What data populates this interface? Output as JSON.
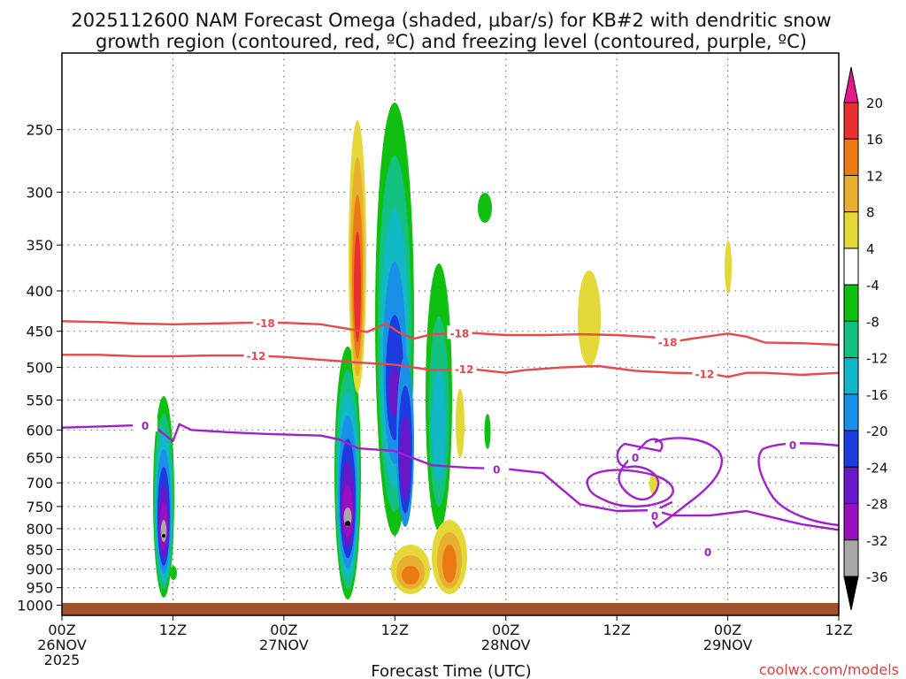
{
  "chart_data": {
    "type": "heatmap",
    "title_lines": [
      "2025112600 NAM Forecast Omega (shaded, µbar/s) for KB#2 with dendritic snow",
      "growth region (contoured, red, ºC) and freezing level (contoured, purple, ºC)"
    ],
    "xlabel": "Forecast Time (UTC)",
    "credit": "coolwx.com/models",
    "y_axis": {
      "scale": "log-pressure",
      "reversed": true,
      "ylim": [
        1030,
        200
      ],
      "ticks": [
        250,
        300,
        350,
        400,
        450,
        500,
        550,
        600,
        650,
        700,
        750,
        800,
        850,
        900,
        950,
        1000
      ]
    },
    "x_axis": {
      "unit": "forecast hour",
      "xlim": [
        0,
        84
      ],
      "ticks": [
        {
          "hour": 0,
          "lines": [
            "00Z",
            "26NOV",
            "2025"
          ]
        },
        {
          "hour": 12,
          "lines": [
            "12Z"
          ]
        },
        {
          "hour": 24,
          "lines": [
            "00Z",
            "27NOV"
          ]
        },
        {
          "hour": 36,
          "lines": [
            "12Z"
          ]
        },
        {
          "hour": 48,
          "lines": [
            "00Z",
            "28NOV"
          ]
        },
        {
          "hour": 60,
          "lines": [
            "12Z"
          ]
        },
        {
          "hour": 72,
          "lines": [
            "00Z",
            "29NOV"
          ]
        },
        {
          "hour": 84,
          "lines": [
            "12Z"
          ]
        }
      ]
    },
    "colorbar": {
      "labels": [
        "20",
        "16",
        "12",
        "8",
        "4",
        "-4",
        "-8",
        "-12",
        "-16",
        "-20",
        "-24",
        "-28",
        "-32",
        "-36"
      ],
      "colors": [
        "#e8188a",
        "#e83030",
        "#ec7a14",
        "#e8b030",
        "#e4d838",
        "#ffffff",
        "#10c010",
        "#12c080",
        "#10b8c8",
        "#1a90e8",
        "#1c3ce0",
        "#6818c8",
        "#9a10c0",
        "#a8a8a8",
        "#000000"
      ]
    },
    "series": [
      {
        "name": "-18",
        "color": "#e84848",
        "points": [
          [
            0,
            437
          ],
          [
            4,
            438
          ],
          [
            8,
            440
          ],
          [
            12,
            441
          ],
          [
            16,
            440
          ],
          [
            20,
            439
          ],
          [
            24,
            439
          ],
          [
            28,
            441
          ],
          [
            31,
            447
          ],
          [
            33,
            451
          ],
          [
            35,
            440
          ],
          [
            36.5,
            452
          ],
          [
            38,
            460
          ],
          [
            40,
            454
          ],
          [
            44,
            452
          ],
          [
            48,
            455
          ],
          [
            52,
            455
          ],
          [
            56,
            454
          ],
          [
            60,
            455
          ],
          [
            64,
            458
          ],
          [
            66,
            464
          ],
          [
            68,
            460
          ],
          [
            72,
            453
          ],
          [
            74,
            457
          ],
          [
            76,
            465
          ],
          [
            80,
            466
          ],
          [
            84,
            468
          ]
        ],
        "labels": [
          {
            "x": 22,
            "text": "-18"
          },
          {
            "x": 43,
            "text": "-18"
          },
          {
            "x": 65.5,
            "text": "-18"
          }
        ]
      },
      {
        "name": "-12",
        "color": "#e84848",
        "points": [
          [
            0,
            482
          ],
          [
            4,
            482
          ],
          [
            8,
            484
          ],
          [
            12,
            484
          ],
          [
            16,
            483
          ],
          [
            20,
            483
          ],
          [
            24,
            485
          ],
          [
            28,
            489
          ],
          [
            32,
            493
          ],
          [
            36,
            496
          ],
          [
            38,
            500
          ],
          [
            40,
            504
          ],
          [
            44,
            502
          ],
          [
            48,
            508
          ],
          [
            50,
            504
          ],
          [
            54,
            500
          ],
          [
            58,
            498
          ],
          [
            62,
            505
          ],
          [
            66,
            508
          ],
          [
            70,
            509
          ],
          [
            72,
            514
          ],
          [
            74,
            508
          ],
          [
            76,
            508
          ],
          [
            80,
            511
          ],
          [
            84,
            508
          ]
        ],
        "labels": [
          {
            "x": 21,
            "text": "-12"
          },
          {
            "x": 43.5,
            "text": "-12"
          },
          {
            "x": 69.5,
            "text": "-12"
          }
        ]
      },
      {
        "name": "0",
        "color": "#a020d0",
        "points": [
          [
            0,
            596
          ],
          [
            4,
            594
          ],
          [
            8,
            592
          ],
          [
            10,
            594
          ],
          [
            12,
            620
          ],
          [
            12.7,
            590
          ],
          [
            14,
            600
          ],
          [
            18,
            604
          ],
          [
            22,
            607
          ],
          [
            24,
            608
          ],
          [
            28,
            610
          ],
          [
            30,
            617
          ],
          [
            32,
            633
          ],
          [
            36,
            638
          ],
          [
            40,
            665
          ],
          [
            44,
            670
          ],
          [
            48,
            672
          ],
          [
            52,
            680
          ],
          [
            54,
            712
          ],
          [
            56,
            745
          ],
          [
            60,
            760
          ],
          [
            64,
            758
          ],
          [
            66,
            770
          ],
          [
            70,
            770
          ],
          [
            74,
            760
          ],
          [
            76,
            770
          ],
          [
            80,
            790
          ],
          [
            84,
            803
          ]
        ],
        "labels": [
          {
            "x": 9,
            "text": "0"
          },
          {
            "x": 47,
            "text": "0"
          }
        ]
      }
    ]
  }
}
